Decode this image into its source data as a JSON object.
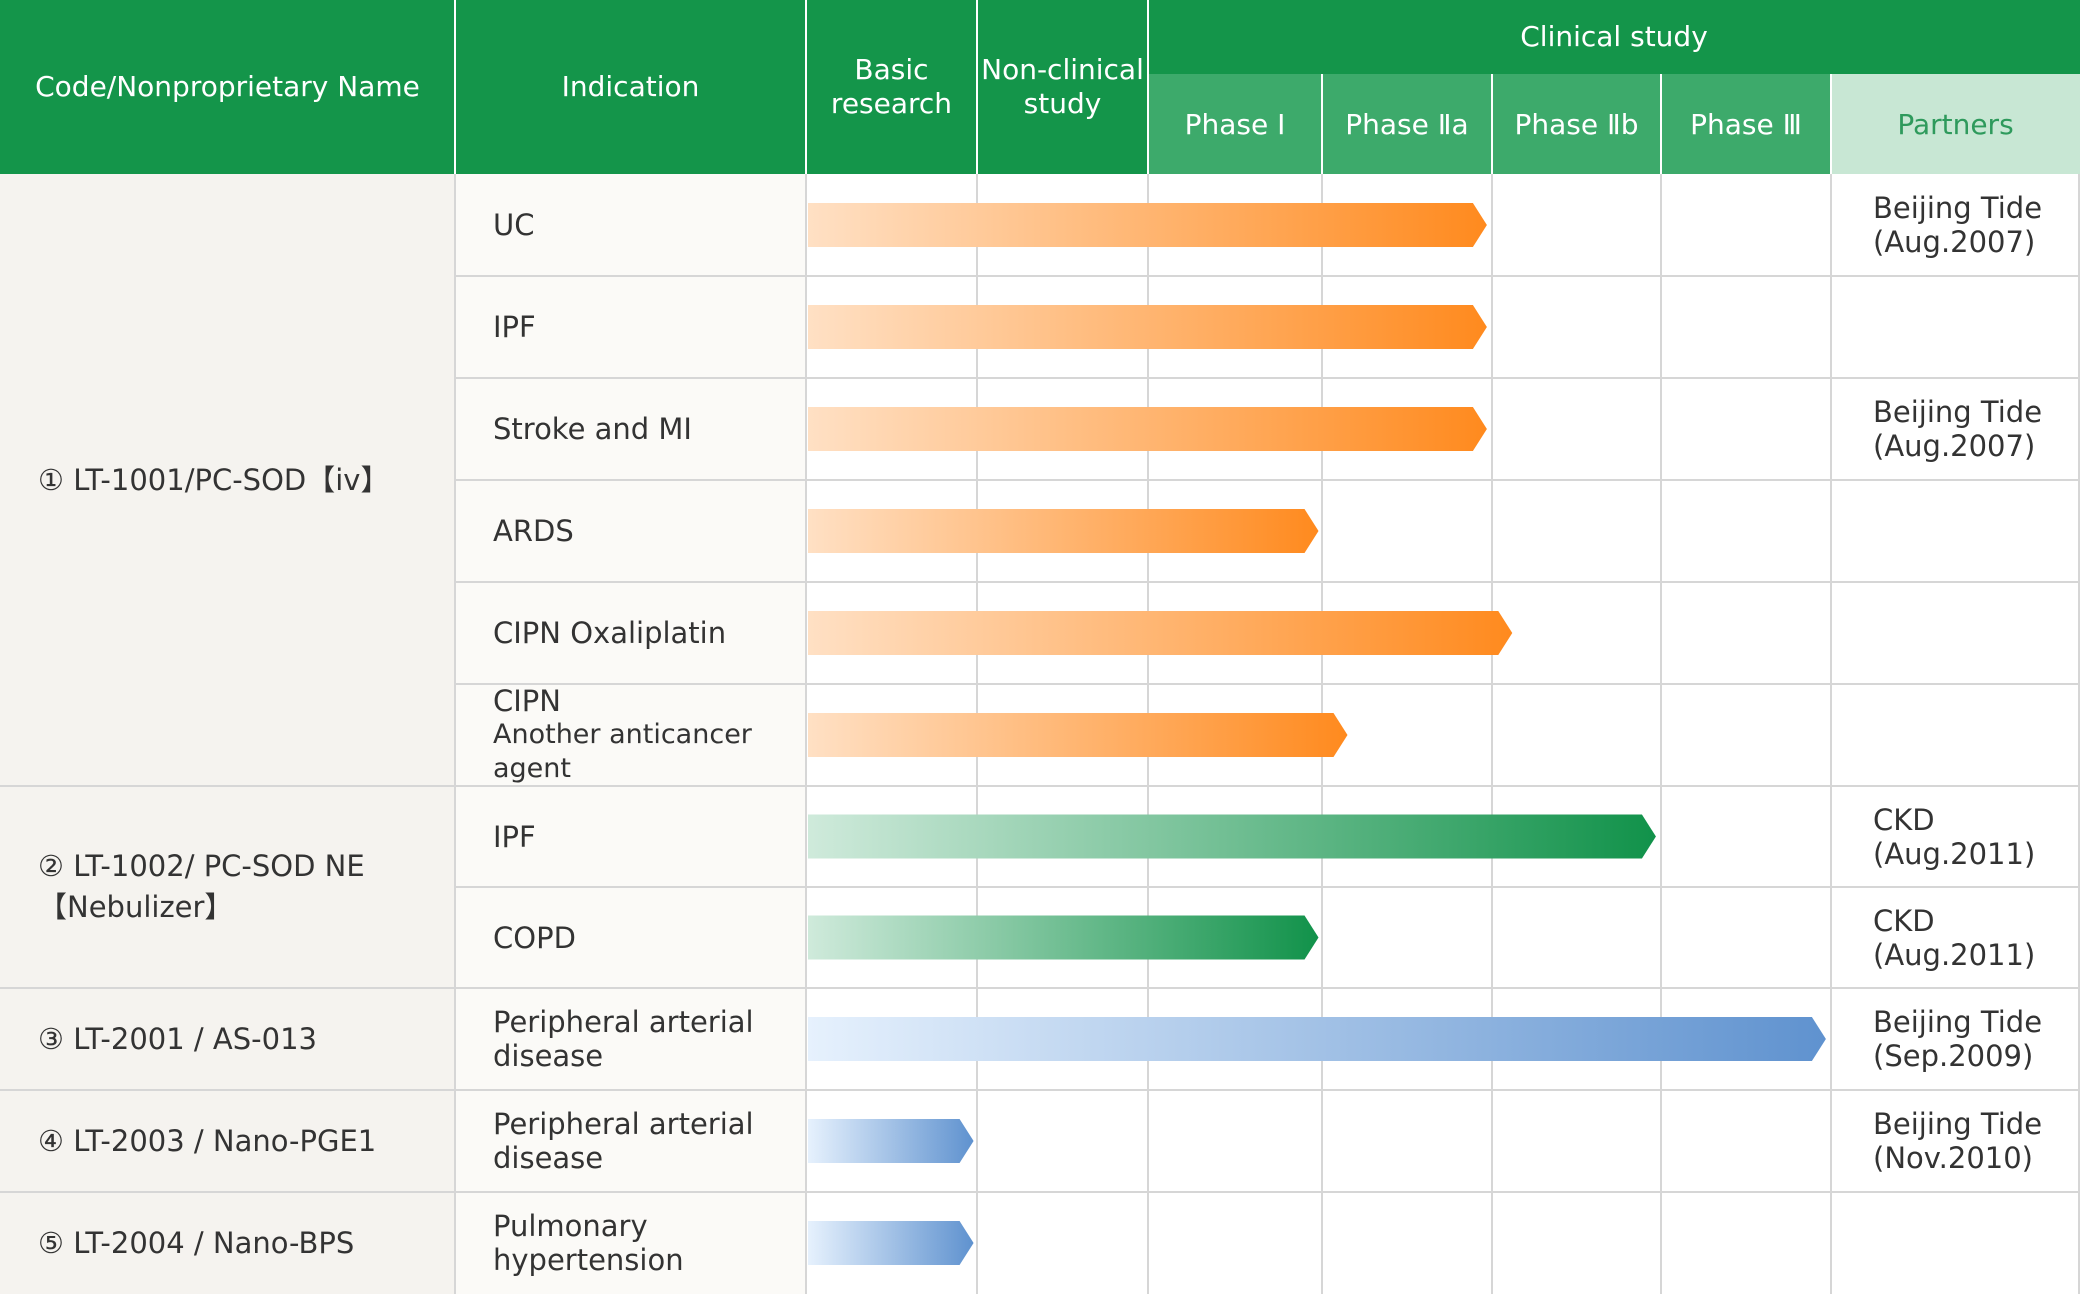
{
  "header": {
    "code_name": "Code/Nonproprietary Name",
    "indication": "Indication",
    "basic_research": [
      "Basic",
      "research"
    ],
    "non_clinical": [
      "Non-clinical",
      "study"
    ],
    "clinical_study": "Clinical study",
    "phase_1": "Phase Ⅰ",
    "phase_2a": "Phase Ⅱa",
    "phase_2b": "Phase Ⅱb",
    "phase_3": "Phase Ⅲ",
    "partners": "Partners"
  },
  "programs": [
    {
      "code_lines": [
        "① LT-1001/PC-SOD【iv】"
      ]
    },
    {
      "code_lines": [
        "② LT-1002/ PC-SOD NE",
        "【Nebulizer】"
      ]
    },
    {
      "code_lines": [
        "③ LT-2001 / AS-013"
      ]
    },
    {
      "code_lines": [
        "④ LT-2003 / Nano-PGE1"
      ]
    },
    {
      "code_lines": [
        "⑤ LT-2004 /  Nano-BPS"
      ]
    }
  ],
  "rows": [
    {
      "indication": "UC",
      "indication_sub": "",
      "partner": [
        "Beijing Tide",
        "(Aug.2007)"
      ],
      "progress_stage": 3.97,
      "color": "orange"
    },
    {
      "indication": "IPF",
      "indication_sub": "",
      "partner": [],
      "progress_stage": 3.97,
      "color": "orange"
    },
    {
      "indication": "Stroke and MI",
      "indication_sub": "",
      "partner": [
        "Beijing Tide",
        "(Aug.2007)"
      ],
      "progress_stage": 3.97,
      "color": "orange"
    },
    {
      "indication": "ARDS",
      "indication_sub": "",
      "partner": [],
      "progress_stage": 2.98,
      "color": "orange"
    },
    {
      "indication": "CIPN Oxaliplatin",
      "indication_sub": "",
      "partner": [],
      "progress_stage": 4.12,
      "color": "orange"
    },
    {
      "indication": "CIPN",
      "indication_sub": "Another anticancer agent",
      "partner": [],
      "progress_stage": 3.15,
      "color": "orange"
    },
    {
      "indication": "IPF",
      "indication_sub": "",
      "partner": [
        "CKD",
        "(Aug.2011)"
      ],
      "progress_stage": 4.97,
      "color": "green"
    },
    {
      "indication": "COPD",
      "indication_sub": "",
      "partner": [
        "CKD",
        "(Aug.2011)"
      ],
      "progress_stage": 2.98,
      "color": "green"
    },
    {
      "indication": "Peripheral arterial",
      "indication_sub": "disease",
      "partner": [
        "Beijing Tide",
        "(Sep.2009)"
      ],
      "progress_stage": 5.97,
      "color": "blue"
    },
    {
      "indication": "Peripheral arterial",
      "indication_sub": "disease",
      "partner": [
        "Beijing Tide",
        "(Nov.2010)"
      ],
      "progress_stage": 0.98,
      "color": "blue"
    },
    {
      "indication": "Pulmonary",
      "indication_sub": "hypertension",
      "partner": [],
      "progress_stage": 0.98,
      "color": "blue"
    }
  ],
  "colors": {
    "header_green": "#14954a",
    "phase_green": "#3daa6b",
    "partner_header": "#c8e7d4",
    "orange_start": "#ffe0c4",
    "orange_end": "#ff8a1e",
    "green_start": "#cfeadb",
    "green_end": "#11924a",
    "blue_start": "#e6f1fd",
    "blue_end": "#5f92cf"
  }
}
